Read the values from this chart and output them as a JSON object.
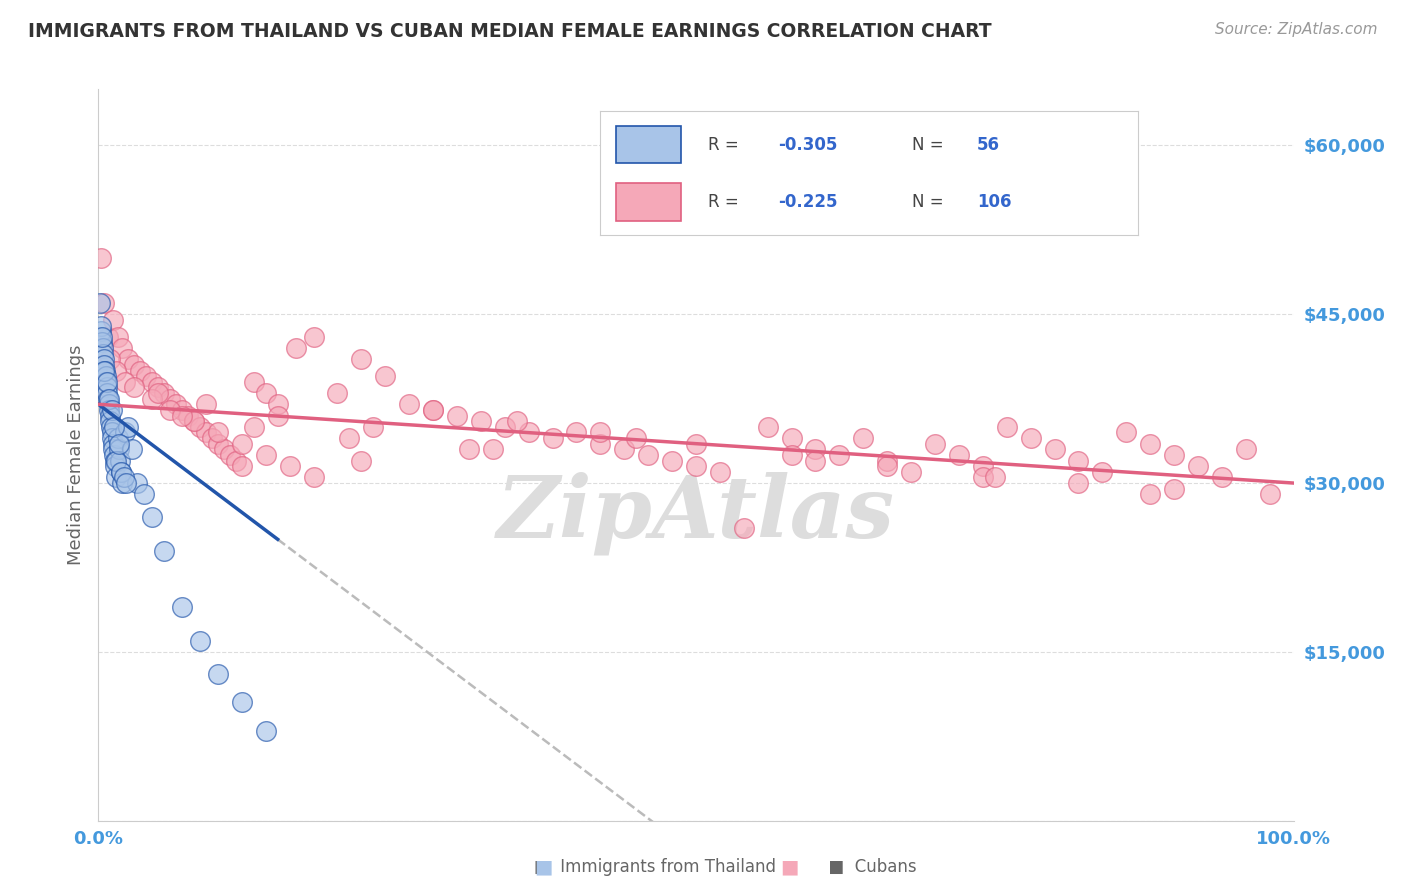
{
  "title": "IMMIGRANTS FROM THAILAND VS CUBAN MEDIAN FEMALE EARNINGS CORRELATION CHART",
  "source": "Source: ZipAtlas.com",
  "ylabel": "Median Female Earnings",
  "y_ticks": [
    0,
    15000,
    30000,
    45000,
    60000
  ],
  "y_tick_labels": [
    "",
    "$15,000",
    "$30,000",
    "$45,000",
    "$60,000"
  ],
  "x_min": 0.0,
  "x_max": 100.0,
  "y_min": 0,
  "y_max": 65000,
  "thailand_marker_color": "#a8c4e8",
  "cuba_marker_color": "#f5a8b8",
  "thailand_line_color": "#2255aa",
  "cuba_line_color": "#e06080",
  "dashed_line_color": "#bbbbbb",
  "background_color": "#ffffff",
  "grid_color": "#dddddd",
  "title_color": "#333333",
  "axis_label_color": "#666666",
  "tick_label_color": "#4499dd",
  "watermark": "ZipAtlas",
  "watermark_color": "#dddddd",
  "thailand_R": "-0.305",
  "thailand_N": "56",
  "cuba_R": "-0.225",
  "cuba_N": "106",
  "thailand_x": [
    0.1,
    0.15,
    0.2,
    0.25,
    0.3,
    0.35,
    0.4,
    0.45,
    0.5,
    0.55,
    0.6,
    0.65,
    0.7,
    0.75,
    0.8,
    0.85,
    0.9,
    0.95,
    1.0,
    1.05,
    1.1,
    1.15,
    1.2,
    1.25,
    1.3,
    1.35,
    1.4,
    1.5,
    1.6,
    1.7,
    1.8,
    1.9,
    2.0,
    2.2,
    2.5,
    2.8,
    3.2,
    3.8,
    4.5,
    5.5,
    7.0,
    8.5,
    10.0,
    12.0,
    14.0,
    0.3,
    0.5,
    0.7,
    0.9,
    1.1,
    1.3,
    1.5,
    1.7,
    1.9,
    2.1,
    2.3
  ],
  "thailand_y": [
    46000,
    43000,
    43500,
    44000,
    42500,
    42000,
    41500,
    41000,
    40500,
    40000,
    39500,
    39000,
    38500,
    38000,
    37500,
    37000,
    36500,
    36000,
    35500,
    35000,
    34500,
    34000,
    33500,
    33000,
    32500,
    32000,
    31500,
    30500,
    34000,
    33000,
    32000,
    31000,
    30000,
    34500,
    35000,
    33000,
    30000,
    29000,
    27000,
    24000,
    19000,
    16000,
    13000,
    10500,
    8000,
    43000,
    40000,
    39000,
    37500,
    36500,
    35000,
    32000,
    33500,
    31000,
    30500,
    30000
  ],
  "cuba_x": [
    0.2,
    0.5,
    0.8,
    1.2,
    1.6,
    2.0,
    2.5,
    3.0,
    3.5,
    4.0,
    4.5,
    5.0,
    5.5,
    6.0,
    6.5,
    7.0,
    7.5,
    8.0,
    8.5,
    9.0,
    9.5,
    10.0,
    10.5,
    11.0,
    11.5,
    12.0,
    13.0,
    14.0,
    15.0,
    16.5,
    18.0,
    20.0,
    22.0,
    24.0,
    26.0,
    28.0,
    30.0,
    32.0,
    34.0,
    36.0,
    38.0,
    40.0,
    42.0,
    44.0,
    46.0,
    48.0,
    50.0,
    52.0,
    54.0,
    56.0,
    58.0,
    60.0,
    62.0,
    64.0,
    66.0,
    68.0,
    70.0,
    72.0,
    74.0,
    76.0,
    78.0,
    80.0,
    82.0,
    84.0,
    86.0,
    88.0,
    90.0,
    92.0,
    94.0,
    96.0,
    98.0,
    1.0,
    1.5,
    2.2,
    3.0,
    4.5,
    6.0,
    8.0,
    10.0,
    12.0,
    14.0,
    16.0,
    18.0,
    22.0,
    28.0,
    35.0,
    42.0,
    50.0,
    58.0,
    66.0,
    74.0,
    82.0,
    90.0,
    5.0,
    9.0,
    15.0,
    23.0,
    33.0,
    45.0,
    60.0,
    75.0,
    88.0,
    7.0,
    13.0,
    21.0,
    31.0
  ],
  "cuba_y": [
    50000,
    46000,
    43000,
    44500,
    43000,
    42000,
    41000,
    40500,
    40000,
    39500,
    39000,
    38500,
    38000,
    37500,
    37000,
    36500,
    36000,
    35500,
    35000,
    34500,
    34000,
    33500,
    33000,
    32500,
    32000,
    31500,
    39000,
    38000,
    37000,
    42000,
    43000,
    38000,
    41000,
    39500,
    37000,
    36500,
    36000,
    35500,
    35000,
    34500,
    34000,
    34500,
    33500,
    33000,
    32500,
    32000,
    31500,
    31000,
    26000,
    35000,
    34000,
    33000,
    32500,
    34000,
    32000,
    31000,
    33500,
    32500,
    31500,
    35000,
    34000,
    33000,
    32000,
    31000,
    34500,
    33500,
    32500,
    31500,
    30500,
    33000,
    29000,
    41000,
    40000,
    39000,
    38500,
    37500,
    36500,
    35500,
    34500,
    33500,
    32500,
    31500,
    30500,
    32000,
    36500,
    35500,
    34500,
    33500,
    32500,
    31500,
    30500,
    30000,
    29500,
    38000,
    37000,
    36000,
    35000,
    33000,
    34000,
    32000,
    30500,
    29000,
    36000,
    35000,
    34000,
    33000
  ]
}
